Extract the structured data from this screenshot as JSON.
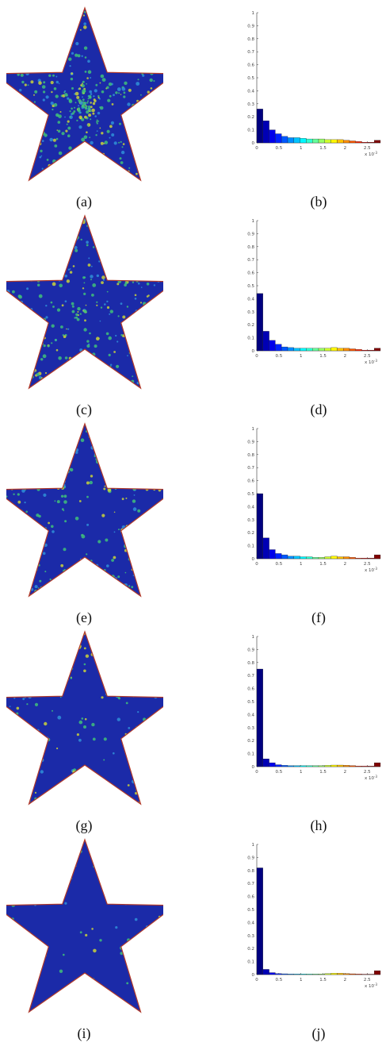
{
  "panels": [
    {
      "star_caption": "(a)",
      "hist_caption": "(b)"
    },
    {
      "star_caption": "(c)",
      "hist_caption": "(d)"
    },
    {
      "star_caption": "(e)",
      "hist_caption": "(f)"
    },
    {
      "star_caption": "(g)",
      "hist_caption": "(h)"
    },
    {
      "star_caption": "(i)",
      "hist_caption": "(j)"
    }
  ],
  "chart_data": [
    {
      "type": "bar",
      "panel": "(b)",
      "x_tick_labels": [
        "0",
        "0.5",
        "1",
        "1.5",
        "2",
        "2.5"
      ],
      "x_multiplier": "x 10^-3",
      "ylim": [
        0,
        1
      ],
      "y_ticks": [
        0,
        0.1,
        0.2,
        0.3,
        0.4,
        0.5,
        0.6,
        0.7,
        0.8,
        0.9,
        1
      ],
      "xlim": [
        0,
        2.8
      ],
      "bin_width": 0.14,
      "values": [
        0.26,
        0.17,
        0.1,
        0.07,
        0.05,
        0.04,
        0.04,
        0.035,
        0.03,
        0.03,
        0.03,
        0.025,
        0.025,
        0.025,
        0.02,
        0.015,
        0.01,
        0.005,
        0.005,
        0.02
      ]
    },
    {
      "type": "bar",
      "panel": "(d)",
      "x_tick_labels": [
        "0",
        "0.5",
        "1",
        "1.5",
        "2",
        "2.5"
      ],
      "x_multiplier": "x 10^-3",
      "ylim": [
        0,
        1
      ],
      "y_ticks": [
        0,
        0.1,
        0.2,
        0.3,
        0.4,
        0.5,
        0.6,
        0.7,
        0.8,
        0.9,
        1
      ],
      "xlim": [
        0,
        2.8
      ],
      "bin_width": 0.14,
      "values": [
        0.44,
        0.15,
        0.08,
        0.05,
        0.03,
        0.025,
        0.02,
        0.02,
        0.02,
        0.02,
        0.02,
        0.02,
        0.025,
        0.02,
        0.02,
        0.015,
        0.01,
        0.005,
        0.005,
        0.02
      ]
    },
    {
      "type": "bar",
      "panel": "(f)",
      "x_tick_labels": [
        "0",
        "0.5",
        "1",
        "1.5",
        "2",
        "2.5"
      ],
      "x_multiplier": "x 10^-3",
      "ylim": [
        0,
        1
      ],
      "y_ticks": [
        0,
        0.1,
        0.2,
        0.3,
        0.4,
        0.5,
        0.6,
        0.7,
        0.8,
        0.9,
        1
      ],
      "xlim": [
        0,
        2.8
      ],
      "bin_width": 0.14,
      "values": [
        0.5,
        0.16,
        0.07,
        0.04,
        0.03,
        0.02,
        0.02,
        0.015,
        0.015,
        0.01,
        0.01,
        0.015,
        0.02,
        0.015,
        0.015,
        0.01,
        0.005,
        0.005,
        0.005,
        0.03
      ]
    },
    {
      "type": "bar",
      "panel": "(h)",
      "x_tick_labels": [
        "0",
        "0.5",
        "1",
        "1.5",
        "2",
        "2.5"
      ],
      "x_multiplier": "x 10^-3",
      "ylim": [
        0,
        1
      ],
      "y_ticks": [
        0,
        0.1,
        0.2,
        0.3,
        0.4,
        0.5,
        0.6,
        0.7,
        0.8,
        0.9,
        1
      ],
      "xlim": [
        0,
        2.8
      ],
      "bin_width": 0.14,
      "values": [
        0.75,
        0.06,
        0.03,
        0.015,
        0.01,
        0.008,
        0.008,
        0.008,
        0.008,
        0.008,
        0.008,
        0.01,
        0.012,
        0.012,
        0.01,
        0.008,
        0.005,
        0.004,
        0.004,
        0.03
      ]
    },
    {
      "type": "bar",
      "panel": "(j)",
      "x_tick_labels": [
        "0",
        "0.5",
        "1",
        "1.5",
        "2",
        "2.5"
      ],
      "x_multiplier": "x 10^-3",
      "ylim": [
        0,
        1
      ],
      "y_ticks": [
        0,
        0.1,
        0.2,
        0.3,
        0.4,
        0.5,
        0.6,
        0.7,
        0.8,
        0.9,
        1
      ],
      "xlim": [
        0,
        2.8
      ],
      "bin_width": 0.14,
      "values": [
        0.82,
        0.04,
        0.015,
        0.008,
        0.006,
        0.005,
        0.005,
        0.005,
        0.005,
        0.005,
        0.005,
        0.008,
        0.01,
        0.01,
        0.008,
        0.006,
        0.004,
        0.003,
        0.003,
        0.03
      ]
    }
  ]
}
